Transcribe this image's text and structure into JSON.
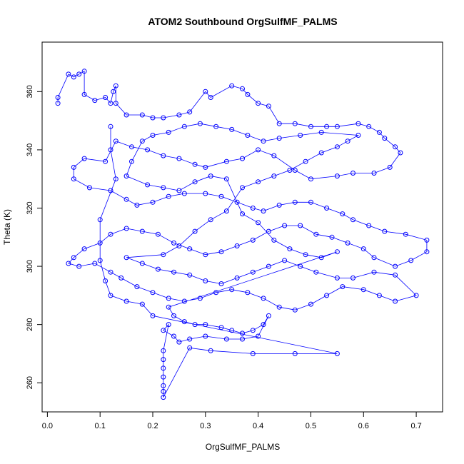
{
  "chart_data": {
    "type": "scatter",
    "title": "ATOM2 Southbound OrgSulfMF_PALMS",
    "xlabel": "OrgSulfMF_PALMS",
    "ylabel": "Theta (K)",
    "xlim": [
      -0.01,
      0.75
    ],
    "ylim": [
      250,
      377
    ],
    "xticks": [
      "0.0",
      "0.1",
      "0.2",
      "0.3",
      "0.4",
      "0.5",
      "0.6",
      "0.7"
    ],
    "xtick_values": [
      0.0,
      0.1,
      0.2,
      0.3,
      0.4,
      0.5,
      0.6,
      0.7
    ],
    "yticks": [
      "260",
      "280",
      "300",
      "320",
      "340",
      "360"
    ],
    "ytick_values": [
      260,
      280,
      300,
      320,
      340,
      360
    ],
    "grid": false,
    "color": "#0000ff",
    "series": [
      {
        "values": [
          [
            0.02,
            356
          ],
          [
            0.02,
            358
          ],
          [
            0.04,
            366
          ],
          [
            0.05,
            365
          ],
          [
            0.06,
            366
          ],
          [
            0.07,
            367
          ],
          [
            0.07,
            359
          ],
          [
            0.09,
            357
          ],
          [
            0.11,
            358
          ],
          [
            0.12,
            356
          ],
          [
            0.125,
            360
          ],
          [
            0.13,
            362
          ],
          [
            0.13,
            356
          ],
          [
            0.15,
            352
          ],
          [
            0.18,
            352
          ],
          [
            0.2,
            351
          ],
          [
            0.22,
            351
          ],
          [
            0.25,
            352
          ],
          [
            0.27,
            353
          ],
          [
            0.3,
            360
          ],
          [
            0.31,
            358
          ],
          [
            0.35,
            362
          ],
          [
            0.37,
            361
          ],
          [
            0.38,
            359
          ],
          [
            0.4,
            356
          ],
          [
            0.42,
            355
          ],
          [
            0.44,
            349
          ],
          [
            0.47,
            349
          ],
          [
            0.5,
            348
          ],
          [
            0.53,
            348
          ],
          [
            0.55,
            348
          ],
          [
            0.59,
            349
          ],
          [
            0.61,
            348
          ],
          [
            0.63,
            346
          ],
          [
            0.64,
            344
          ],
          [
            0.66,
            341
          ],
          [
            0.67,
            339
          ],
          [
            0.65,
            334
          ],
          [
            0.62,
            332
          ],
          [
            0.58,
            332
          ],
          [
            0.55,
            331
          ],
          [
            0.5,
            330
          ],
          [
            0.47,
            333
          ],
          [
            0.43,
            338
          ],
          [
            0.4,
            340
          ],
          [
            0.37,
            337
          ],
          [
            0.34,
            336
          ],
          [
            0.3,
            334
          ],
          [
            0.28,
            335
          ],
          [
            0.25,
            337
          ],
          [
            0.22,
            338
          ],
          [
            0.19,
            340
          ],
          [
            0.16,
            341
          ],
          [
            0.13,
            343
          ],
          [
            0.11,
            336
          ],
          [
            0.07,
            337
          ],
          [
            0.05,
            334
          ],
          [
            0.05,
            330
          ],
          [
            0.08,
            327
          ],
          [
            0.12,
            326
          ],
          [
            0.15,
            323
          ],
          [
            0.17,
            321
          ],
          [
            0.2,
            322
          ],
          [
            0.23,
            324
          ],
          [
            0.26,
            325
          ],
          [
            0.3,
            325
          ],
          [
            0.33,
            324
          ],
          [
            0.36,
            322
          ],
          [
            0.39,
            320
          ],
          [
            0.41,
            319
          ],
          [
            0.44,
            321
          ],
          [
            0.47,
            322
          ],
          [
            0.5,
            322
          ],
          [
            0.53,
            320
          ],
          [
            0.56,
            318
          ],
          [
            0.58,
            316
          ],
          [
            0.61,
            314
          ],
          [
            0.64,
            312
          ],
          [
            0.68,
            311
          ],
          [
            0.72,
            309
          ],
          [
            0.72,
            305
          ],
          [
            0.69,
            302
          ],
          [
            0.66,
            300
          ],
          [
            0.62,
            303
          ],
          [
            0.6,
            306
          ],
          [
            0.57,
            308
          ],
          [
            0.54,
            310
          ],
          [
            0.51,
            311
          ],
          [
            0.48,
            314
          ],
          [
            0.45,
            314
          ],
          [
            0.42,
            312
          ],
          [
            0.39,
            309
          ],
          [
            0.36,
            307
          ],
          [
            0.33,
            305
          ],
          [
            0.3,
            304
          ],
          [
            0.27,
            306
          ],
          [
            0.24,
            308
          ],
          [
            0.21,
            311
          ],
          [
            0.18,
            312
          ],
          [
            0.15,
            313
          ],
          [
            0.12,
            311
          ],
          [
            0.1,
            308
          ],
          [
            0.07,
            306
          ],
          [
            0.05,
            303
          ],
          [
            0.04,
            301
          ],
          [
            0.06,
            300
          ],
          [
            0.09,
            301
          ],
          [
            0.12,
            298
          ],
          [
            0.14,
            296
          ],
          [
            0.17,
            293
          ],
          [
            0.2,
            291
          ],
          [
            0.23,
            289
          ],
          [
            0.26,
            288
          ],
          [
            0.29,
            289
          ],
          [
            0.32,
            291
          ],
          [
            0.35,
            292
          ],
          [
            0.38,
            291
          ],
          [
            0.41,
            289
          ],
          [
            0.44,
            286
          ],
          [
            0.47,
            285
          ],
          [
            0.5,
            287
          ],
          [
            0.53,
            290
          ],
          [
            0.56,
            293
          ],
          [
            0.6,
            292
          ],
          [
            0.63,
            290
          ],
          [
            0.66,
            288
          ],
          [
            0.7,
            290
          ],
          [
            0.66,
            297
          ],
          [
            0.62,
            298
          ],
          [
            0.58,
            296
          ],
          [
            0.55,
            296
          ],
          [
            0.51,
            298
          ],
          [
            0.48,
            300
          ],
          [
            0.45,
            302
          ],
          [
            0.42,
            300
          ],
          [
            0.39,
            298
          ],
          [
            0.36,
            296
          ],
          [
            0.33,
            294
          ],
          [
            0.3,
            295
          ],
          [
            0.27,
            297
          ],
          [
            0.24,
            298
          ],
          [
            0.21,
            299
          ],
          [
            0.18,
            301
          ],
          [
            0.15,
            303
          ],
          [
            0.22,
            304
          ],
          [
            0.25,
            307
          ],
          [
            0.28,
            312
          ],
          [
            0.31,
            316
          ],
          [
            0.34,
            319
          ],
          [
            0.37,
            327
          ],
          [
            0.4,
            329
          ],
          [
            0.43,
            331
          ],
          [
            0.46,
            333
          ],
          [
            0.49,
            336
          ],
          [
            0.52,
            339
          ],
          [
            0.55,
            341
          ],
          [
            0.57,
            343
          ],
          [
            0.59,
            345
          ],
          [
            0.52,
            346
          ],
          [
            0.48,
            345
          ],
          [
            0.44,
            344
          ],
          [
            0.41,
            343
          ],
          [
            0.38,
            345
          ],
          [
            0.35,
            347
          ],
          [
            0.32,
            348
          ],
          [
            0.29,
            349
          ],
          [
            0.26,
            348
          ],
          [
            0.23,
            346
          ],
          [
            0.2,
            345
          ],
          [
            0.18,
            343
          ],
          [
            0.16,
            336
          ],
          [
            0.15,
            331
          ],
          [
            0.19,
            328
          ],
          [
            0.22,
            327
          ],
          [
            0.25,
            326
          ],
          [
            0.28,
            329
          ],
          [
            0.31,
            331
          ],
          [
            0.34,
            330
          ],
          [
            0.37,
            318
          ],
          [
            0.4,
            315
          ],
          [
            0.43,
            309
          ],
          [
            0.46,
            306
          ],
          [
            0.49,
            304
          ],
          [
            0.52,
            303
          ],
          [
            0.55,
            305
          ],
          [
            0.23,
            286
          ],
          [
            0.24,
            283
          ],
          [
            0.26,
            281
          ],
          [
            0.28,
            280
          ],
          [
            0.3,
            280
          ],
          [
            0.33,
            279
          ],
          [
            0.35,
            278
          ],
          [
            0.37,
            277
          ],
          [
            0.39,
            278
          ],
          [
            0.41,
            280
          ],
          [
            0.42,
            283
          ],
          [
            0.4,
            276
          ],
          [
            0.37,
            275
          ],
          [
            0.34,
            275
          ],
          [
            0.3,
            276
          ],
          [
            0.27,
            275
          ],
          [
            0.25,
            274
          ],
          [
            0.24,
            276
          ],
          [
            0.22,
            278
          ],
          [
            0.23,
            280
          ],
          [
            0.22,
            271
          ],
          [
            0.22,
            268
          ],
          [
            0.22,
            265
          ],
          [
            0.22,
            262
          ],
          [
            0.22,
            259
          ],
          [
            0.22,
            257
          ],
          [
            0.22,
            255
          ],
          [
            0.27,
            272
          ],
          [
            0.31,
            271
          ],
          [
            0.39,
            270
          ],
          [
            0.47,
            270
          ],
          [
            0.55,
            270
          ],
          [
            0.2,
            283
          ],
          [
            0.18,
            287
          ],
          [
            0.15,
            288
          ],
          [
            0.12,
            290
          ],
          [
            0.11,
            295
          ],
          [
            0.1,
            302
          ],
          [
            0.1,
            316
          ],
          [
            0.13,
            330
          ],
          [
            0.12,
            340
          ],
          [
            0.12,
            348
          ]
        ]
      }
    ]
  }
}
